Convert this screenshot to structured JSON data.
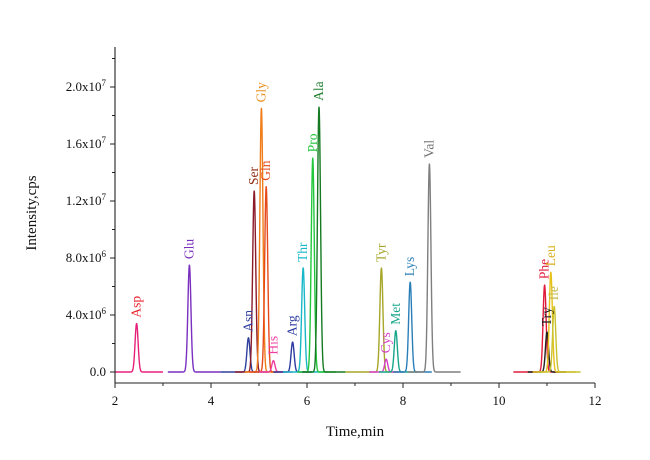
{
  "chart_data": {
    "type": "line",
    "xlabel": "Time,min",
    "ylabel": "Intensity,cps",
    "xlim": [
      2,
      12
    ],
    "ylim": [
      -500000,
      23500000
    ],
    "x_ticks": [
      {
        "value": 2,
        "label": "2"
      },
      {
        "value": 4,
        "label": "4"
      },
      {
        "value": 6,
        "label": "6"
      },
      {
        "value": 8,
        "label": "8"
      },
      {
        "value": 10,
        "label": "10"
      },
      {
        "value": 12,
        "label": "12"
      }
    ],
    "y_ticks": [
      {
        "value": 0,
        "mant": "0.0",
        "exp": ""
      },
      {
        "value": 4000000,
        "mant": "4.0x10",
        "exp": "6"
      },
      {
        "value": 8000000,
        "mant": "8.0x10",
        "exp": "6"
      },
      {
        "value": 12000000,
        "mant": "1.2x10",
        "exp": "7"
      },
      {
        "value": 16000000,
        "mant": "1.6x10",
        "exp": "7"
      },
      {
        "value": 20000000,
        "mant": "2.0x10",
        "exp": "7"
      }
    ],
    "grid": false,
    "legend": "none",
    "series": [
      {
        "name": "Asp",
        "peak_time": 2.45,
        "peak_height": 3400000,
        "color": "#e6207a",
        "label_color": "#e8232c",
        "range": [
          2.0,
          3.0
        ]
      },
      {
        "name": "Glu",
        "peak_time": 3.55,
        "peak_height": 7500000,
        "color": "#7a2fbf",
        "label_color": "#7a2fbf",
        "range": [
          3.1,
          4.2
        ]
      },
      {
        "name": "Asn",
        "peak_time": 4.78,
        "peak_height": 2400000,
        "color": "#2e3f9c",
        "label_color": "#2e3f9c",
        "range": [
          4.2,
          5.0
        ]
      },
      {
        "name": "Ser",
        "peak_time": 4.9,
        "peak_height": 12700000,
        "color": "#8b1a2b",
        "label_color": "#8b2b0f",
        "range": [
          4.5,
          5.2
        ]
      },
      {
        "name": "Gly",
        "peak_time": 5.05,
        "peak_height": 18500000,
        "color": "#f07d1a",
        "label_color": "#e8901d",
        "range": [
          4.7,
          5.4
        ]
      },
      {
        "name": "Gln",
        "peak_time": 5.15,
        "peak_height": 13000000,
        "color": "#e64a1a",
        "label_color": "#e64a1a",
        "range": [
          4.8,
          5.5
        ]
      },
      {
        "name": "His",
        "peak_time": 5.3,
        "peak_height": 800000,
        "color": "#ee3ca0",
        "label_color": "#ee3ca0",
        "range": [
          5.0,
          5.7
        ]
      },
      {
        "name": "Arg",
        "peak_time": 5.7,
        "peak_height": 2100000,
        "color": "#2c3aa0",
        "label_color": "#2c3aa0",
        "range": [
          5.3,
          6.1
        ]
      },
      {
        "name": "Thr",
        "peak_time": 5.92,
        "peak_height": 7300000,
        "color": "#19b8c8",
        "label_color": "#19b8c8",
        "range": [
          5.5,
          6.4
        ]
      },
      {
        "name": "Pro",
        "peak_time": 6.12,
        "peak_height": 15000000,
        "color": "#22c73c",
        "label_color": "#22c73c",
        "range": [
          5.8,
          6.6
        ]
      },
      {
        "name": "Ala",
        "peak_time": 6.25,
        "peak_height": 18600000,
        "color": "#157a22",
        "label_color": "#1e7d2b",
        "range": [
          5.9,
          6.8
        ]
      },
      {
        "name": "Tyr",
        "peak_time": 7.55,
        "peak_height": 7300000,
        "color": "#a6a628",
        "label_color": "#a6a628",
        "range": [
          6.8,
          7.9
        ]
      },
      {
        "name": "Cys",
        "peak_time": 7.65,
        "peak_height": 900000,
        "color": "#d63fc9",
        "label_color": "#d63fc9",
        "range": [
          7.3,
          8.0
        ]
      },
      {
        "name": "Met",
        "peak_time": 7.85,
        "peak_height": 2900000,
        "color": "#17a68a",
        "label_color": "#17a68a",
        "range": [
          7.5,
          8.3
        ]
      },
      {
        "name": "Lys",
        "peak_time": 8.15,
        "peak_height": 6300000,
        "color": "#2b7fb8",
        "label_color": "#2b7fb8",
        "range": [
          7.8,
          8.6
        ]
      },
      {
        "name": "Val",
        "peak_time": 8.55,
        "peak_height": 14600000,
        "color": "#7f7f7f",
        "label_color": "#6f6f6f",
        "range": [
          8.1,
          9.2
        ]
      },
      {
        "name": "Phe",
        "peak_time": 10.95,
        "peak_height": 6100000,
        "color": "#e01b3a",
        "label_color": "#e01b3a",
        "range": [
          10.3,
          11.4
        ]
      },
      {
        "name": "Try",
        "peak_time": 11.0,
        "peak_height": 2800000,
        "color": "#222222",
        "label_color": "#222222",
        "range": [
          10.6,
          11.4
        ]
      },
      {
        "name": "Leu",
        "peak_time": 11.08,
        "peak_height": 7000000,
        "color": "#e6c11a",
        "label_color": "#d8b01f",
        "range": [
          10.7,
          11.6
        ]
      },
      {
        "name": "Ile",
        "peak_time": 11.15,
        "peak_height": 4600000,
        "color": "#c7c22e",
        "label_color": "#c2b94a",
        "range": [
          10.8,
          11.7
        ]
      }
    ]
  }
}
